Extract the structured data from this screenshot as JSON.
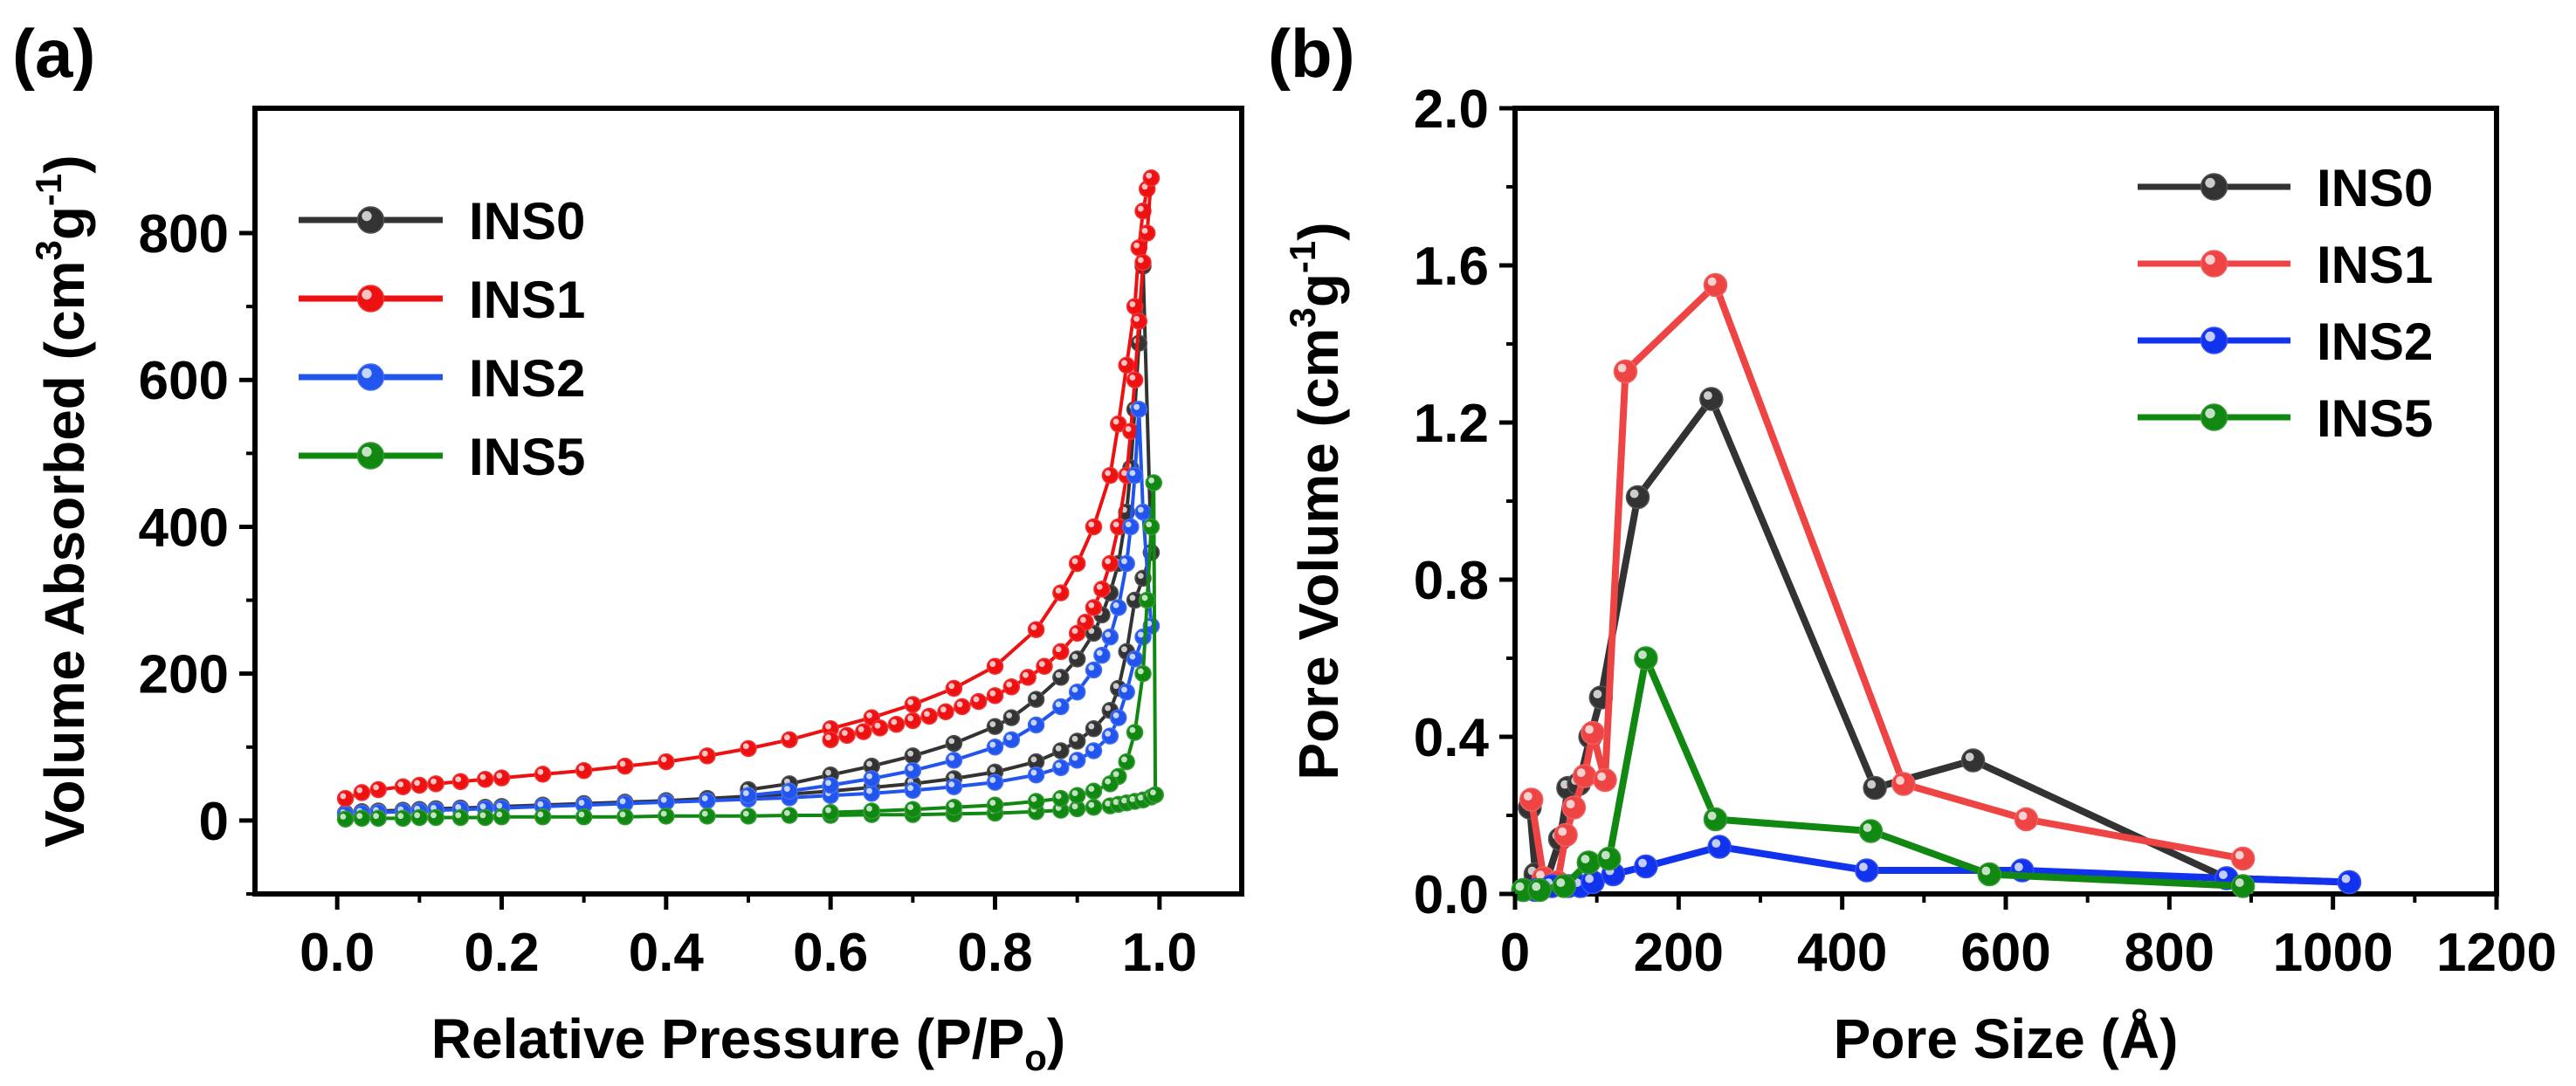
{
  "panels": [
    {
      "label": "(a)",
      "xlabel": "Relative Pressure (P/P",
      "xlabel_sub": "o",
      "xlabel_end": ")",
      "ylabel": "Volume Absorbed (cm",
      "ylabel_sup1": "3",
      "ylabel_mid": "g",
      "ylabel_sup2": "-1",
      "ylabel_end": ")"
    },
    {
      "label": "(b)",
      "xlabel": "Pore Size (Å)",
      "ylabel": "Pore Volume (cm",
      "ylabel_sup1": "3",
      "ylabel_mid": "g",
      "ylabel_sup2": "-1",
      "ylabel_end": ")"
    }
  ],
  "chart_data": [
    {
      "type": "line",
      "title": "",
      "xlabel": "Relative Pressure (P/Po)",
      "ylabel": "Volume Absorbed (cm3g-1)",
      "xlim": [
        -0.1,
        1.1
      ],
      "ylim": [
        -100,
        970
      ],
      "xticks": [
        0.0,
        0.2,
        0.4,
        0.6,
        0.8,
        1.0
      ],
      "xtick_labels": [
        "0.0",
        "0.2",
        "0.4",
        "0.6",
        "0.8",
        "1.0"
      ],
      "yticks": [
        0,
        200,
        400,
        600,
        800
      ],
      "ytick_labels": [
        "0",
        "200",
        "400",
        "600",
        "800"
      ],
      "legend_position": "top-left",
      "series": [
        {
          "name": "INS0",
          "color": "#333333",
          "adsorption": {
            "x": [
              0.01,
              0.03,
              0.05,
              0.08,
              0.1,
              0.12,
              0.15,
              0.18,
              0.2,
              0.25,
              0.3,
              0.35,
              0.4,
              0.45,
              0.5,
              0.55,
              0.6,
              0.65,
              0.7,
              0.75,
              0.8,
              0.85,
              0.88,
              0.9,
              0.92,
              0.94,
              0.95,
              0.96,
              0.97,
              0.98,
              0.99
            ],
            "y": [
              10,
              12,
              13,
              14,
              15,
              16,
              17,
              18,
              19,
              21,
              23,
              25,
              27,
              30,
              33,
              36,
              40,
              45,
              50,
              57,
              66,
              80,
              95,
              108,
              125,
              150,
              180,
              230,
              300,
              330,
              365
            ]
          },
          "desorption": {
            "x": [
              0.99,
              0.98,
              0.975,
              0.97,
              0.965,
              0.96,
              0.95,
              0.94,
              0.93,
              0.92,
              0.9,
              0.88,
              0.85,
              0.82,
              0.8,
              0.75,
              0.7,
              0.65,
              0.6,
              0.55,
              0.5
            ],
            "y": [
              365,
              755,
              650,
              560,
              480,
              420,
              350,
              310,
              280,
              255,
              220,
              195,
              165,
              140,
              128,
              105,
              88,
              74,
              62,
              50,
              42
            ]
          }
        },
        {
          "name": "INS1",
          "color": "#ee1111",
          "adsorption": {
            "x": [
              0.01,
              0.03,
              0.05,
              0.08,
              0.1,
              0.12,
              0.15,
              0.18,
              0.2,
              0.25,
              0.3,
              0.35,
              0.4,
              0.45,
              0.5,
              0.55,
              0.6,
              0.65,
              0.7,
              0.75,
              0.8,
              0.85,
              0.88,
              0.9,
              0.92,
              0.94,
              0.95,
              0.96,
              0.97,
              0.975,
              0.98,
              0.985,
              0.99
            ],
            "y": [
              30,
              38,
              42,
              46,
              48,
              50,
              53,
              56,
              58,
              63,
              68,
              74,
              80,
              88,
              98,
              110,
              125,
              140,
              158,
              180,
              210,
              260,
              310,
              350,
              400,
              470,
              540,
              620,
              700,
              780,
              830,
              860,
              875
            ]
          },
          "desorption": {
            "x": [
              0.99,
              0.985,
              0.98,
              0.975,
              0.97,
              0.965,
              0.96,
              0.95,
              0.94,
              0.93,
              0.92,
              0.91,
              0.9,
              0.88,
              0.86,
              0.84,
              0.82,
              0.8,
              0.78,
              0.76,
              0.74,
              0.72,
              0.7,
              0.68,
              0.66,
              0.64,
              0.62,
              0.6
            ],
            "y": [
              875,
              800,
              760,
              680,
              600,
              530,
              470,
              400,
              350,
              315,
              290,
              270,
              255,
              230,
              210,
              195,
              182,
              170,
              162,
              155,
              148,
              142,
              136,
              131,
              126,
              121,
              116,
              110
            ]
          }
        },
        {
          "name": "INS2",
          "color": "#2255ee",
          "adsorption": {
            "x": [
              0.01,
              0.03,
              0.05,
              0.08,
              0.1,
              0.12,
              0.15,
              0.18,
              0.2,
              0.25,
              0.3,
              0.35,
              0.4,
              0.45,
              0.5,
              0.55,
              0.6,
              0.65,
              0.7,
              0.75,
              0.8,
              0.85,
              0.88,
              0.9,
              0.92,
              0.94,
              0.95,
              0.96,
              0.97,
              0.98,
              0.99
            ],
            "y": [
              8,
              10,
              11,
              12,
              13,
              14,
              15,
              16,
              17,
              19,
              21,
              23,
              25,
              27,
              29,
              31,
              34,
              37,
              41,
              46,
              52,
              62,
              72,
              82,
              95,
              115,
              140,
              175,
              220,
              250,
              265
            ]
          },
          "desorption": {
            "x": [
              0.99,
              0.98,
              0.975,
              0.97,
              0.965,
              0.96,
              0.95,
              0.94,
              0.93,
              0.92,
              0.9,
              0.88,
              0.85,
              0.82,
              0.8,
              0.75,
              0.7,
              0.65,
              0.6,
              0.55,
              0.5
            ],
            "y": [
              265,
              420,
              560,
              470,
              400,
              350,
              290,
              250,
              225,
              205,
              175,
              155,
              130,
              110,
              100,
              82,
              68,
              57,
              48,
              40,
              34
            ]
          }
        },
        {
          "name": "INS5",
          "color": "#118811",
          "adsorption": {
            "x": [
              0.01,
              0.03,
              0.05,
              0.08,
              0.1,
              0.12,
              0.15,
              0.18,
              0.2,
              0.25,
              0.3,
              0.35,
              0.4,
              0.45,
              0.5,
              0.55,
              0.6,
              0.65,
              0.7,
              0.75,
              0.8,
              0.85,
              0.88,
              0.9,
              0.92,
              0.94,
              0.95,
              0.96,
              0.97,
              0.98,
              0.99,
              0.995
            ],
            "y": [
              2,
              3,
              3,
              3,
              4,
              4,
              4,
              4,
              5,
              5,
              5,
              5,
              6,
              6,
              6,
              7,
              7,
              8,
              8,
              9,
              10,
              12,
              14,
              16,
              18,
              20,
              22,
              24,
              26,
              28,
              32,
              35
            ]
          },
          "desorption": {
            "x": [
              0.995,
              0.993,
              0.99,
              0.985,
              0.98,
              0.97,
              0.96,
              0.95,
              0.94,
              0.92,
              0.9,
              0.88,
              0.85,
              0.8,
              0.75,
              0.7,
              0.65,
              0.6
            ],
            "y": [
              35,
              460,
              400,
              300,
              200,
              120,
              80,
              60,
              50,
              40,
              34,
              30,
              26,
              21,
              18,
              15,
              13,
              11
            ]
          }
        }
      ]
    },
    {
      "type": "line",
      "title": "",
      "xlabel": "Pore Size (Å)",
      "ylabel": "Pore Volume (cm3g-1)",
      "xlim": [
        0,
        1200
      ],
      "ylim": [
        0,
        2.0
      ],
      "xticks": [
        0,
        200,
        400,
        600,
        800,
        1000,
        1200
      ],
      "xtick_labels": [
        "0",
        "200",
        "400",
        "600",
        "800",
        "1000",
        "1200"
      ],
      "yticks": [
        0.0,
        0.4,
        0.8,
        1.2,
        1.6,
        2.0
      ],
      "ytick_labels": [
        "0.0",
        "0.4",
        "0.8",
        "1.2",
        "1.6",
        "2.0"
      ],
      "legend_position": "top-right",
      "series": [
        {
          "name": "INS0",
          "color": "#333333",
          "x": [
            18,
            25,
            38,
            55,
            65,
            78,
            92,
            105,
            150,
            240,
            440,
            560,
            870,
            1020
          ],
          "y": [
            0.22,
            0.05,
            0.03,
            0.14,
            0.27,
            0.28,
            0.4,
            0.5,
            1.01,
            1.26,
            0.27,
            0.34,
            0.04,
            0.03
          ]
        },
        {
          "name": "INS1",
          "color": "#ee4444",
          "x": [
            20,
            35,
            52,
            62,
            72,
            85,
            95,
            110,
            135,
            245,
            475,
            625,
            890
          ],
          "y": [
            0.24,
            0.04,
            0.03,
            0.15,
            0.22,
            0.3,
            0.41,
            0.29,
            1.33,
            1.55,
            0.28,
            0.19,
            0.09
          ]
        },
        {
          "name": "INS2",
          "color": "#1133ee",
          "x": [
            10,
            25,
            45,
            65,
            80,
            95,
            120,
            160,
            250,
            430,
            620,
            870,
            1020
          ],
          "y": [
            0.01,
            0.01,
            0.02,
            0.02,
            0.02,
            0.03,
            0.05,
            0.07,
            0.12,
            0.06,
            0.06,
            0.04,
            0.03
          ]
        },
        {
          "name": "INS5",
          "color": "#118811",
          "x": [
            10,
            30,
            60,
            90,
            115,
            160,
            245,
            435,
            580,
            890
          ],
          "y": [
            0.01,
            0.01,
            0.02,
            0.08,
            0.09,
            0.6,
            0.19,
            0.16,
            0.05,
            0.02
          ]
        }
      ]
    }
  ]
}
